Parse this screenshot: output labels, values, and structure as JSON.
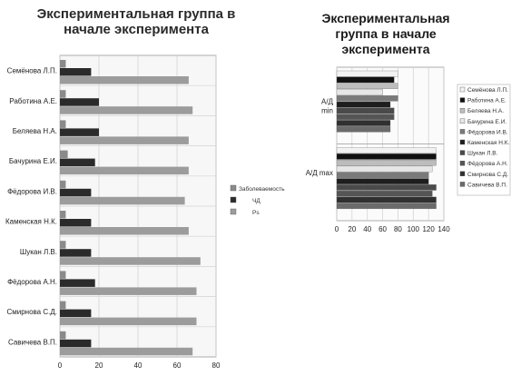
{
  "chart_data": [
    {
      "type": "bar",
      "orientation": "horizontal",
      "title": "Экспериментальная группа в начале эксперимента",
      "categories": [
        "Семёнова Л.П.",
        "Работина А.Е.",
        "Беляева Н.А.",
        "Бачурина Е.И.",
        "Фёдорова И.В.",
        "Каменская Н.К.",
        "Шукан Л.В.",
        "Фёдорова А.Н.",
        "Смирнова С.Д.",
        "Савичева В.П."
      ],
      "series": [
        {
          "name": "Заболеваемость",
          "color": "#8a8a8a",
          "values": [
            3,
            3,
            3,
            4,
            3,
            3,
            3,
            3,
            3,
            3
          ]
        },
        {
          "name": "ЧД",
          "color": "#2b2b2b",
          "values": [
            16,
            20,
            20,
            18,
            16,
            16,
            16,
            18,
            16,
            16
          ]
        },
        {
          "name": "Ps",
          "color": "#9c9c9c",
          "values": [
            66,
            68,
            66,
            66,
            64,
            66,
            72,
            70,
            70,
            68
          ]
        }
      ],
      "xlim": [
        0,
        80
      ],
      "xticks": [
        0,
        20,
        40,
        60,
        80
      ],
      "grid": true,
      "legend_position": "right"
    },
    {
      "type": "bar",
      "orientation": "horizontal",
      "title": "Экспериментальная группа в начале эксперимента",
      "categories": [
        "А/Д min",
        "А/Д max"
      ],
      "series": [
        {
          "name": "Семёнова Л.П.",
          "color": "#f2f2f2",
          "values": [
            80,
            130
          ]
        },
        {
          "name": "Работина А.Е.",
          "color": "#111111",
          "values": [
            75,
            130
          ]
        },
        {
          "name": "Беляева Н.А.",
          "color": "#bdbdbd",
          "values": [
            80,
            130
          ]
        },
        {
          "name": "Бачурина Е.И.",
          "color": "#e6e6e6",
          "values": [
            60,
            125
          ]
        },
        {
          "name": "Фёдорова И.В.",
          "color": "#7a7a7a",
          "values": [
            80,
            120
          ]
        },
        {
          "name": "Каменская Н.К.",
          "color": "#1e1e1e",
          "values": [
            70,
            120
          ]
        },
        {
          "name": "Шукан Л.В.",
          "color": "#4a4a4a",
          "values": [
            75,
            130
          ]
        },
        {
          "name": "Фёдорова А.Н.",
          "color": "#555555",
          "values": [
            75,
            125
          ]
        },
        {
          "name": "Смирнова С.Д.",
          "color": "#303030",
          "values": [
            70,
            130
          ]
        },
        {
          "name": "Савичева В.П.",
          "color": "#6b6b6b",
          "values": [
            70,
            130
          ]
        }
      ],
      "xlim": [
        0,
        140
      ],
      "xticks": [
        0,
        20,
        40,
        60,
        80,
        100,
        120,
        140
      ],
      "grid": true,
      "legend_position": "right"
    }
  ]
}
